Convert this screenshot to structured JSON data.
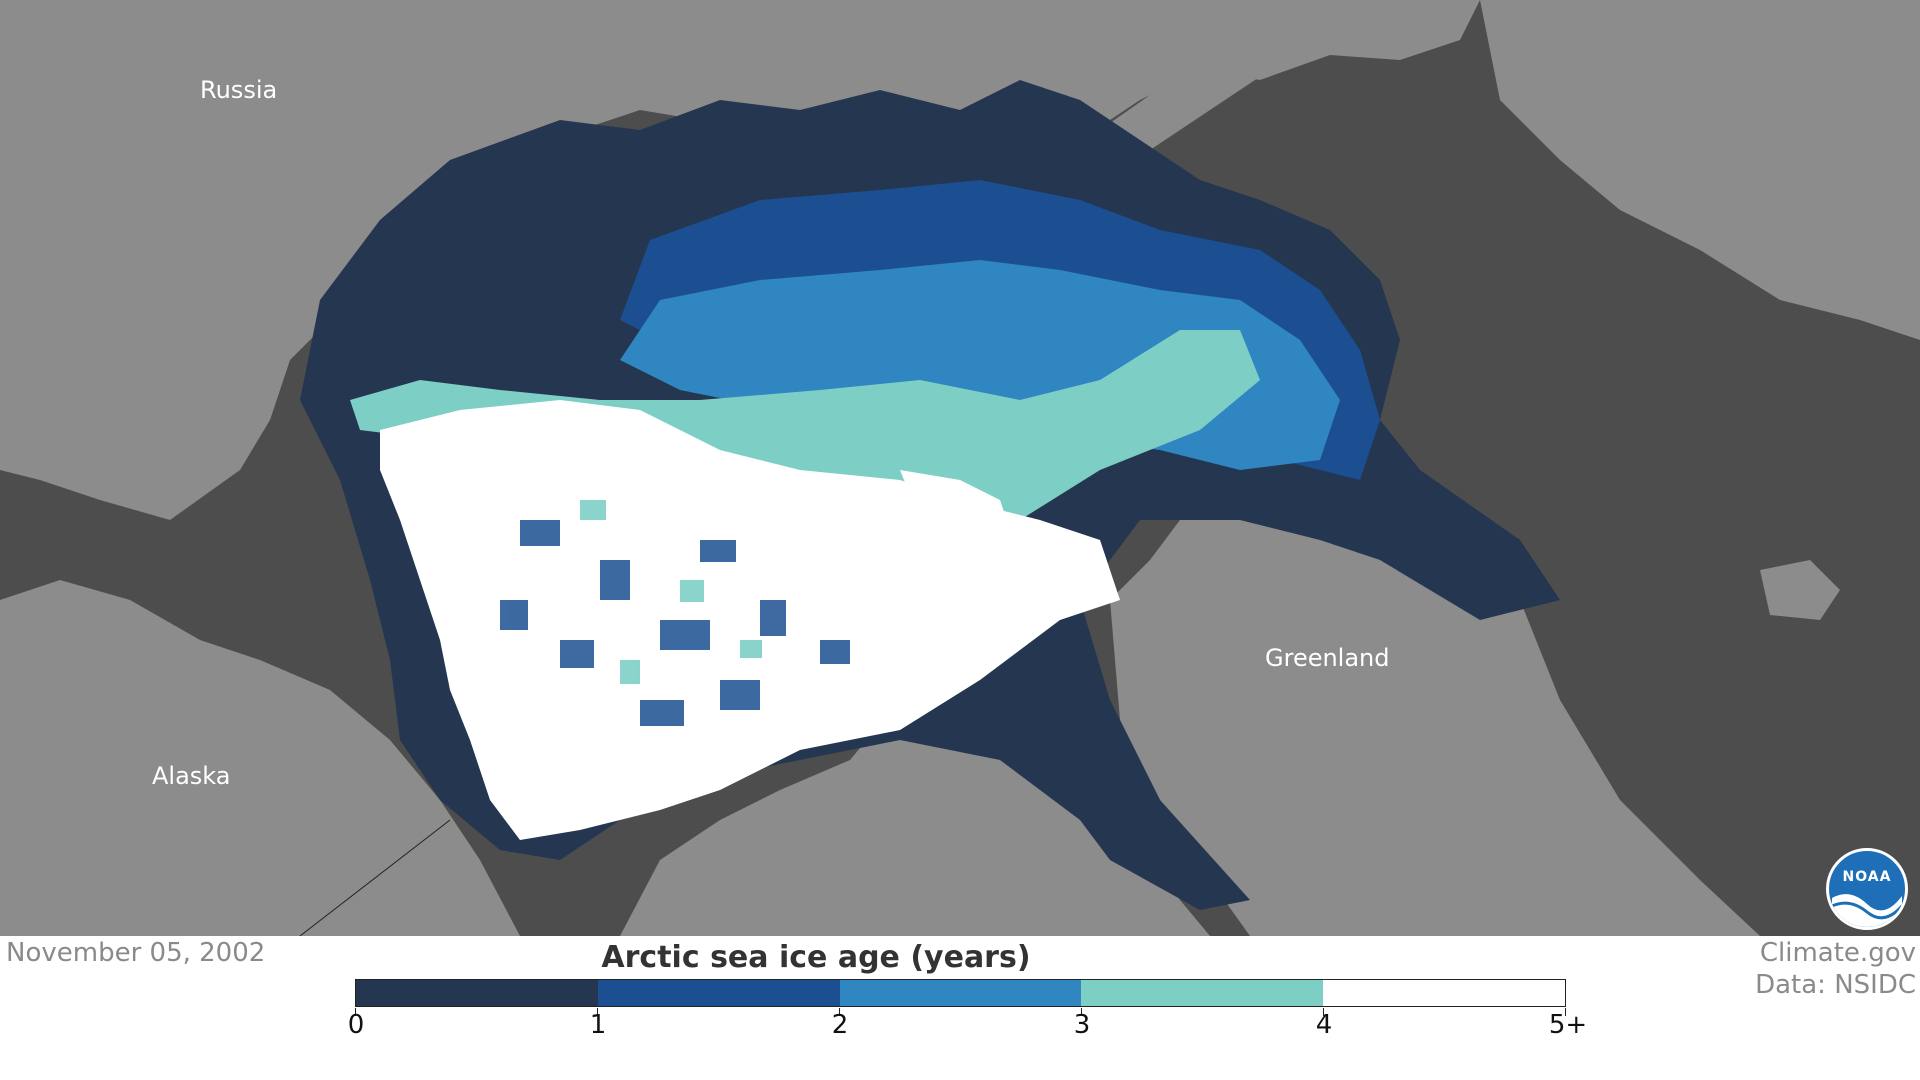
{
  "map": {
    "labels": {
      "russia": "Russia",
      "alaska": "Alaska",
      "greenland": "Greenland"
    },
    "colors": {
      "land": "#8c8c8c",
      "ocean": "#4d4d4d",
      "ice_0_1": "#243650",
      "ice_1_2": "#1c4f91",
      "ice_2_3": "#2f86c1",
      "ice_3_4": "#7dcfc6",
      "ice_4_5": "#ffffff"
    }
  },
  "footer": {
    "date": "November 05, 2002",
    "credit_site": "Climate.gov",
    "credit_data": "Data: NSIDC"
  },
  "legend": {
    "title": "Arctic sea ice age (years)",
    "ticks": [
      "0",
      "1",
      "2",
      "3",
      "4",
      "5+"
    ],
    "colors": [
      "#243650",
      "#1c4f91",
      "#2f86c1",
      "#7dcfc6",
      "#ffffff"
    ]
  },
  "logo": {
    "text": "NOAA"
  }
}
